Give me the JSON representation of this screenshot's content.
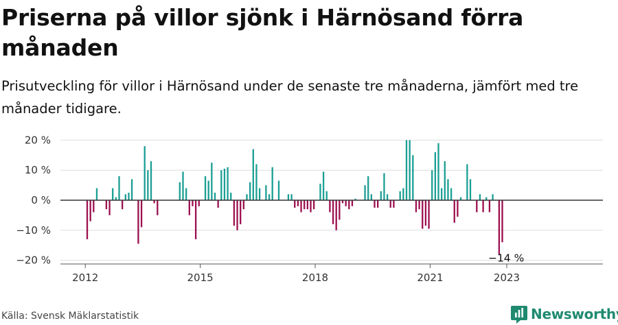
{
  "title": "Priserna på villor sjönk i Härnösand förra månaden",
  "subtitle": "Prisutveckling för villor i Härnösand under de senaste tre månaderna, jämfört med tre månader tidigare.",
  "source": "Källa: Svensk Mäklarstatistik",
  "brand": "Newsworthy",
  "colors": {
    "positive": "#1a9e93",
    "negative": "#9c0f4f",
    "brand": "#1f8a70"
  },
  "chart_data": {
    "type": "bar",
    "ylim": [
      -21,
      22
    ],
    "yticks": [
      20,
      10,
      0,
      -10,
      -20
    ],
    "ytick_labels": [
      "20 %",
      "10 %",
      "0 %",
      "−10 %",
      "−20 %"
    ],
    "xtick_labels": [
      "2012",
      "2015",
      "2018",
      "2021",
      "2023"
    ],
    "xtick_positions": [
      2012,
      2015,
      2018,
      2021,
      2023
    ],
    "x_start": 2012,
    "annotation": {
      "text": "−14 %",
      "x_index": 131,
      "value": -14
    },
    "values": [
      -13,
      -7,
      -4,
      4,
      0,
      0,
      -3,
      -5,
      4,
      1,
      8,
      -3,
      2,
      2.5,
      7,
      0,
      -14.5,
      -9,
      18,
      10,
      13,
      -1,
      -5,
      0,
      0,
      0,
      0,
      0,
      0,
      6,
      9.5,
      4,
      -5,
      -2,
      -13,
      -2,
      0,
      8,
      6.5,
      12.5,
      2.5,
      -2.5,
      10,
      10.5,
      11,
      2.5,
      -8.5,
      -10,
      -8,
      -3,
      2,
      6,
      17,
      12,
      4,
      0,
      5,
      2,
      11,
      0,
      6.5,
      0,
      0,
      2,
      2,
      -2.5,
      -2,
      -4,
      -3,
      -3,
      -4,
      -3,
      0,
      5.5,
      9.5,
      3,
      -4,
      -8,
      -10,
      -6.5,
      -1,
      -2,
      -3,
      -2,
      0.5,
      0,
      0,
      5,
      8,
      2,
      -2.5,
      -2.5,
      3,
      9,
      2,
      -2.5,
      -2.5,
      0,
      3,
      4,
      20,
      20,
      15,
      -4,
      -3,
      -9.5,
      -8.5,
      -9.5,
      10,
      16,
      19,
      4,
      13,
      7,
      4,
      -7.5,
      -5.5,
      1,
      0,
      12,
      7,
      0,
      -4,
      2,
      -4,
      1,
      -4,
      2,
      0,
      -18,
      -14
    ]
  }
}
